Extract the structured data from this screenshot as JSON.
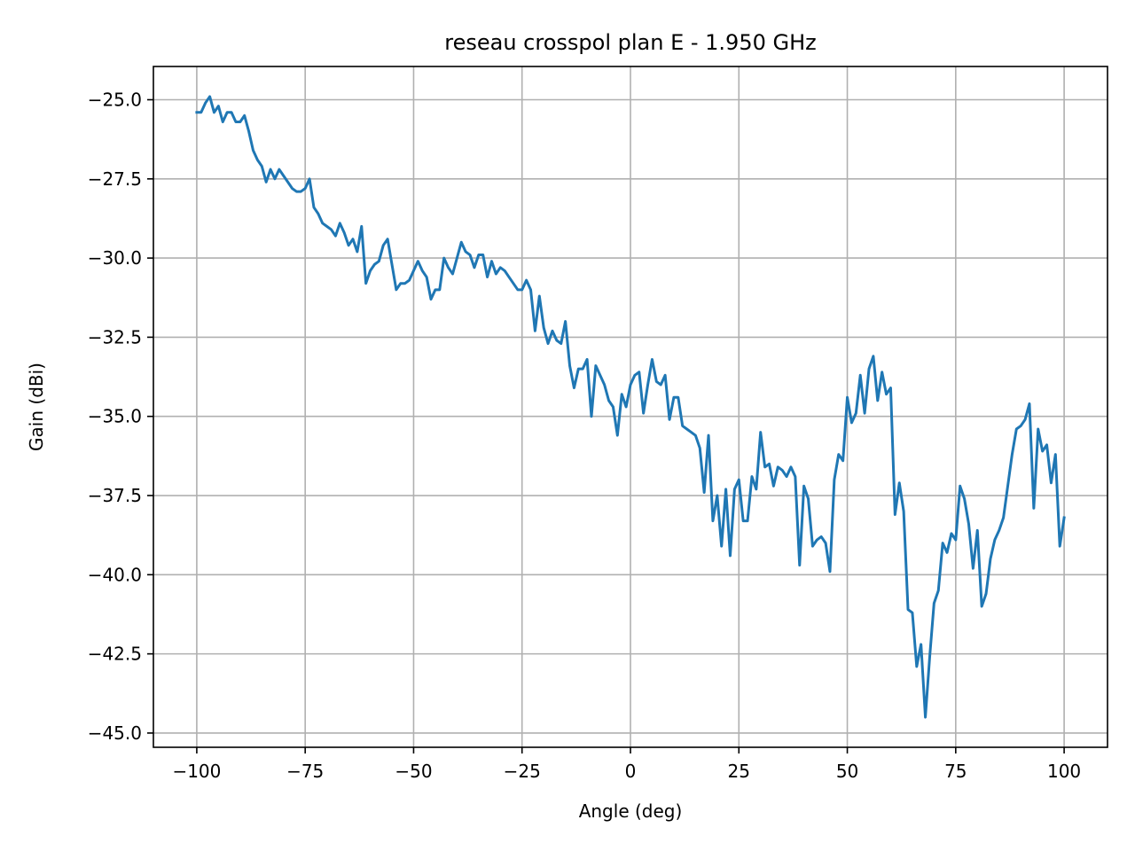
{
  "chart_data": {
    "type": "line",
    "title": "reseau crosspol plan E - 1.950 GHz",
    "xlabel": "Angle (deg)",
    "ylabel": "Gain (dBi)",
    "xlim": [
      -110,
      110
    ],
    "ylim": [
      -45.45,
      -23.95
    ],
    "grid": true,
    "xticks": [
      -100,
      -75,
      -50,
      -25,
      0,
      25,
      50,
      75,
      100
    ],
    "xtick_labels": [
      "−100",
      "−75",
      "−50",
      "−25",
      "0",
      "25",
      "50",
      "75",
      "100"
    ],
    "yticks": [
      -25.0,
      -27.5,
      -30.0,
      -32.5,
      -35.0,
      -37.5,
      -40.0,
      -42.5,
      -45.0
    ],
    "ytick_labels": [
      "−25.0",
      "−27.5",
      "−30.0",
      "−32.5",
      "−35.0",
      "−37.5",
      "−40.0",
      "−42.5",
      "−45.0"
    ],
    "series": [
      {
        "color": "#1f77b4",
        "x": [
          -100,
          -99,
          -98,
          -97,
          -96,
          -95,
          -94,
          -93,
          -92,
          -91,
          -90,
          -89,
          -88,
          -87,
          -86,
          -85,
          -84,
          -83,
          -82,
          -81,
          -80,
          -79,
          -78,
          -77,
          -76,
          -75,
          -74,
          -73,
          -72,
          -71,
          -70,
          -69,
          -68,
          -67,
          -66,
          -65,
          -64,
          -63,
          -62,
          -61,
          -60,
          -59,
          -58,
          -57,
          -56,
          -55,
          -54,
          -53,
          -52,
          -51,
          -50,
          -49,
          -48,
          -47,
          -46,
          -45,
          -44,
          -43,
          -42,
          -41,
          -40,
          -39,
          -38,
          -37,
          -36,
          -35,
          -34,
          -33,
          -32,
          -31,
          -30,
          -29,
          -28,
          -27,
          -26,
          -25,
          -24,
          -23,
          -22,
          -21,
          -20,
          -19,
          -18,
          -17,
          -16,
          -15,
          -14,
          -13,
          -12,
          -11,
          -10,
          -9,
          -8,
          -7,
          -6,
          -5,
          -4,
          -3,
          -2,
          -1,
          0,
          1,
          2,
          3,
          4,
          5,
          6,
          7,
          8,
          9,
          10,
          11,
          12,
          13,
          14,
          15,
          16,
          17,
          18,
          19,
          20,
          21,
          22,
          23,
          24,
          25,
          26,
          27,
          28,
          29,
          30,
          31,
          32,
          33,
          34,
          35,
          36,
          37,
          38,
          39,
          40,
          41,
          42,
          43,
          44,
          45,
          46,
          47,
          48,
          49,
          50,
          51,
          52,
          53,
          54,
          55,
          56,
          57,
          58,
          59,
          60,
          61,
          62,
          63,
          64,
          65,
          66,
          67,
          68,
          69,
          70,
          71,
          72,
          73,
          74,
          75,
          76,
          77,
          78,
          79,
          80,
          81,
          82,
          83,
          84,
          85,
          86,
          87,
          88,
          89,
          90,
          91,
          92,
          93,
          94,
          95,
          96,
          97,
          98,
          99,
          100
        ],
        "values": [
          -25.4,
          -25.4,
          -25.1,
          -24.9,
          -25.4,
          -25.2,
          -25.7,
          -25.4,
          -25.4,
          -25.7,
          -25.7,
          -25.5,
          -26.0,
          -26.6,
          -26.9,
          -27.1,
          -27.6,
          -27.2,
          -27.5,
          -27.2,
          -27.4,
          -27.6,
          -27.8,
          -27.9,
          -27.9,
          -27.8,
          -27.5,
          -28.4,
          -28.6,
          -28.9,
          -29.0,
          -29.1,
          -29.3,
          -28.9,
          -29.2,
          -29.6,
          -29.4,
          -29.8,
          -29.0,
          -30.8,
          -30.4,
          -30.2,
          -30.1,
          -29.6,
          -29.4,
          -30.2,
          -31.0,
          -30.8,
          -30.8,
          -30.7,
          -30.4,
          -30.1,
          -30.4,
          -30.6,
          -31.3,
          -31.0,
          -31.0,
          -30.0,
          -30.3,
          -30.5,
          -30.0,
          -29.5,
          -29.8,
          -29.9,
          -30.3,
          -29.9,
          -29.9,
          -30.6,
          -30.1,
          -30.5,
          -30.3,
          -30.4,
          -30.6,
          -30.8,
          -31.0,
          -31.0,
          -30.7,
          -31.0,
          -32.3,
          -31.2,
          -32.2,
          -32.7,
          -32.3,
          -32.6,
          -32.7,
          -32.0,
          -33.4,
          -34.1,
          -33.5,
          -33.5,
          -33.2,
          -35.0,
          -33.4,
          -33.7,
          -34.0,
          -34.5,
          -34.7,
          -35.6,
          -34.3,
          -34.7,
          -34.0,
          -33.7,
          -33.6,
          -34.9,
          -34.0,
          -33.2,
          -33.9,
          -34.0,
          -33.7,
          -35.1,
          -34.4,
          -34.4,
          -35.3,
          -35.4,
          -35.5,
          -35.6,
          -36.0,
          -37.4,
          -35.6,
          -38.3,
          -37.5,
          -39.1,
          -37.3,
          -39.4,
          -37.3,
          -37.0,
          -38.3,
          -38.3,
          -36.9,
          -37.3,
          -35.5,
          -36.6,
          -36.5,
          -37.2,
          -36.6,
          -36.7,
          -36.9,
          -36.6,
          -36.9,
          -39.7,
          -37.2,
          -37.6,
          -39.1,
          -38.9,
          -38.8,
          -39.0,
          -39.9,
          -37.0,
          -36.2,
          -36.4,
          -34.4,
          -35.2,
          -34.9,
          -33.7,
          -34.9,
          -33.5,
          -33.1,
          -34.5,
          -33.6,
          -34.3,
          -34.1,
          -38.1,
          -37.1,
          -38.0,
          -41.1,
          -41.2,
          -42.9,
          -42.2,
          -44.5,
          -42.6,
          -40.9,
          -40.5,
          -39.0,
          -39.3,
          -38.7,
          -38.9,
          -37.2,
          -37.6,
          -38.4,
          -39.8,
          -38.6,
          -41.0,
          -40.6,
          -39.5,
          -38.9,
          -38.6,
          -38.2,
          -37.2,
          -36.2,
          -35.4,
          -35.3,
          -35.1,
          -34.6,
          -37.9,
          -35.4,
          -36.1,
          -35.9,
          -37.1,
          -36.2,
          -39.1,
          -38.2
        ]
      }
    ]
  }
}
